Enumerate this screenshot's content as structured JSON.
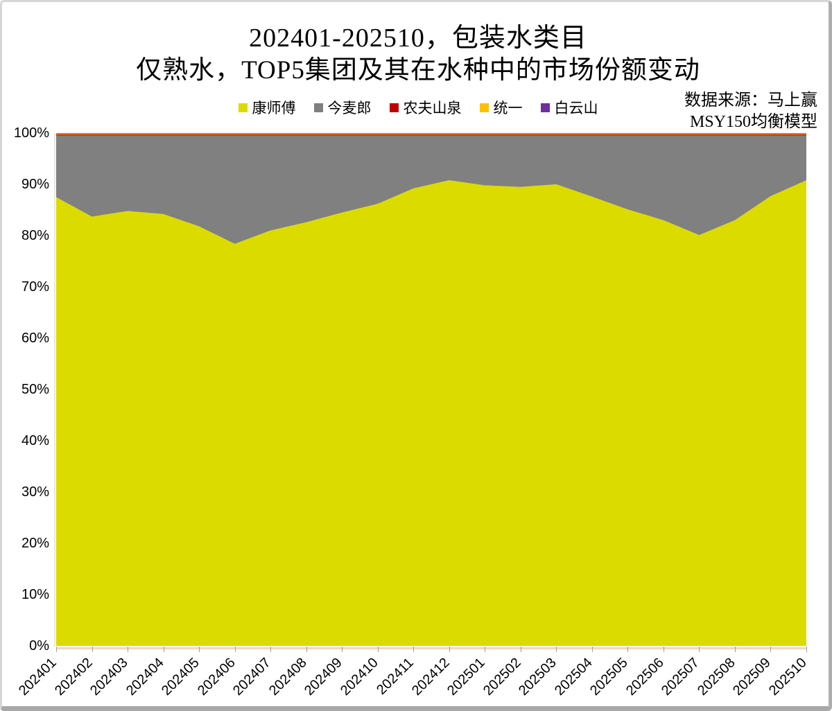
{
  "window": {
    "background": "#ffffff",
    "border_color": "#aeaeae"
  },
  "title": {
    "line1": "202401-202510，包装水类目",
    "line2": "仅熟水，TOP5集团及其在水种中的市场份额变动"
  },
  "source": {
    "line1": "数据来源：马上赢",
    "line2": "MSY150均衡模型"
  },
  "chart_data": {
    "type": "area",
    "stacked": true,
    "percent_stacked": true,
    "title": "202401-202510，包装水类目 仅熟水，TOP5集团及其在水种中的市场份额变动",
    "xlabel": "",
    "ylabel": "",
    "ylim": [
      0,
      100
    ],
    "grid": false,
    "legend_position": "top",
    "categories": [
      "202401",
      "202402",
      "202403",
      "202404",
      "202405",
      "202406",
      "202407",
      "202408",
      "202409",
      "202410",
      "202411",
      "202412",
      "202501",
      "202502",
      "202503",
      "202504",
      "202505",
      "202506",
      "202507",
      "202508",
      "202509",
      "202510"
    ],
    "y_ticks": [
      "0%",
      "10%",
      "20%",
      "30%",
      "40%",
      "50%",
      "60%",
      "70%",
      "80%",
      "90%",
      "100%"
    ],
    "series": [
      {
        "id": "kangshifu",
        "name": "康师傅",
        "color": "#DCDB00",
        "values": [
          87.5,
          83.7,
          84.8,
          84.2,
          81.8,
          78.4,
          81.0,
          82.6,
          84.5,
          86.2,
          89.2,
          90.8,
          89.8,
          89.5,
          90.0,
          87.6,
          85.1,
          83.0,
          80.1,
          83.0,
          87.7,
          90.8
        ]
      },
      {
        "id": "jinmailang",
        "name": "今麦郎",
        "color": "#808080",
        "values": [
          12.05,
          15.85,
          14.75,
          15.35,
          17.75,
          21.15,
          18.55,
          16.95,
          15.05,
          13.35,
          10.35,
          8.75,
          9.75,
          10.05,
          9.55,
          11.95,
          14.45,
          16.55,
          19.45,
          16.55,
          11.85,
          8.75
        ]
      },
      {
        "id": "nongfushanquan",
        "name": "农夫山泉",
        "color": "#C00000",
        "values": [
          0.2,
          0.2,
          0.2,
          0.2,
          0.2,
          0.2,
          0.2,
          0.2,
          0.2,
          0.2,
          0.2,
          0.2,
          0.2,
          0.2,
          0.2,
          0.2,
          0.2,
          0.2,
          0.2,
          0.2,
          0.2,
          0.2
        ]
      },
      {
        "id": "tongyi",
        "name": "统一",
        "color": "#FFC000",
        "values": [
          0.15,
          0.15,
          0.15,
          0.15,
          0.15,
          0.15,
          0.15,
          0.15,
          0.15,
          0.15,
          0.15,
          0.15,
          0.15,
          0.15,
          0.15,
          0.15,
          0.15,
          0.15,
          0.15,
          0.15,
          0.15,
          0.15
        ]
      },
      {
        "id": "baiyunshan",
        "name": "白云山",
        "color": "#7030A0",
        "values": [
          0.1,
          0.1,
          0.1,
          0.1,
          0.1,
          0.1,
          0.1,
          0.1,
          0.1,
          0.1,
          0.1,
          0.1,
          0.1,
          0.1,
          0.1,
          0.1,
          0.1,
          0.1,
          0.1,
          0.1,
          0.1,
          0.1
        ]
      }
    ]
  }
}
